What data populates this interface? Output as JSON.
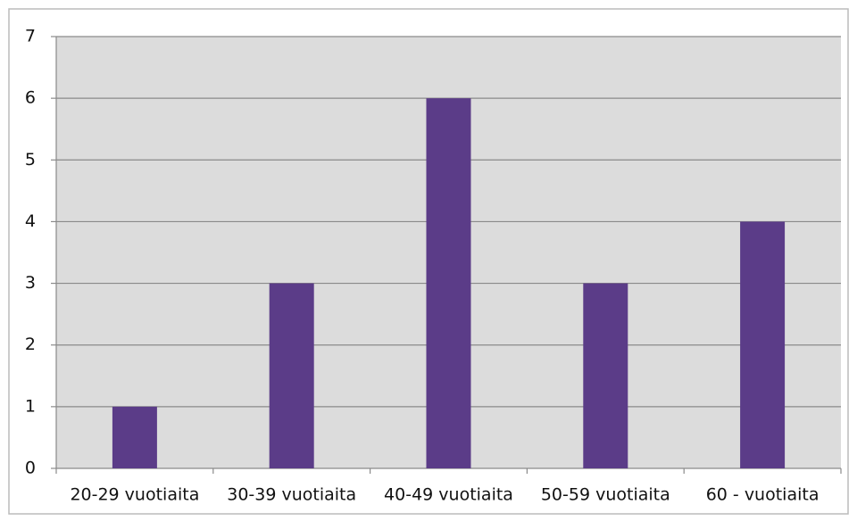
{
  "chart_data": {
    "type": "bar",
    "categories": [
      "20-29 vuotiaita",
      "30-39 vuotiaita",
      "40-49 vuotiaita",
      "50-59 vuotiaita",
      "60 - vuotiaita"
    ],
    "values": [
      1,
      3,
      6,
      3,
      4
    ],
    "color": "#5b3c88",
    "ylim": [
      0,
      7
    ],
    "yticks": [
      0,
      1,
      2,
      3,
      4,
      5,
      6,
      7
    ],
    "grid": true
  }
}
